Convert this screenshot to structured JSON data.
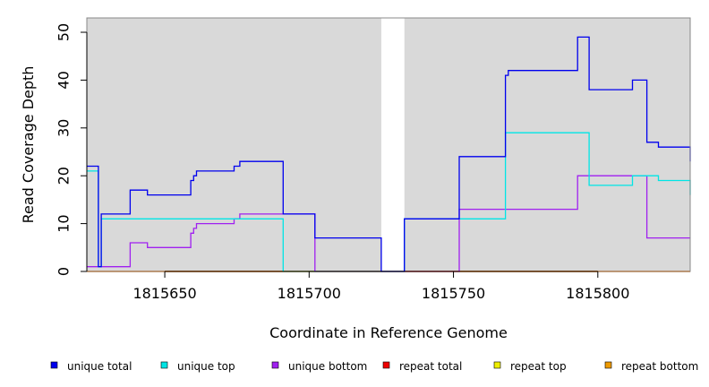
{
  "chart_data": {
    "type": "line",
    "xlabel": "Coordinate in Reference Genome",
    "ylabel": "Read Coverage Depth",
    "xlim": [
      1815623,
      1815832
    ],
    "ylim": [
      0,
      53
    ],
    "x_ticks": [
      1815650,
      1815700,
      1815750,
      1815800
    ],
    "y_ticks": [
      0,
      10,
      20,
      30,
      40,
      50
    ],
    "grid": false,
    "plot_background": "#d9d9d9",
    "gap_region": [
      1815725,
      1815733
    ],
    "legend_position": "bottom",
    "series": [
      {
        "name": "unique total",
        "color": "#0000ee",
        "style": "step",
        "points": [
          [
            1815623,
            22
          ],
          [
            1815627,
            1
          ],
          [
            1815628,
            12
          ],
          [
            1815638,
            17
          ],
          [
            1815644,
            16
          ],
          [
            1815659,
            19
          ],
          [
            1815660,
            20
          ],
          [
            1815661,
            21
          ],
          [
            1815674,
            22
          ],
          [
            1815676,
            23
          ],
          [
            1815691,
            12
          ],
          [
            1815702,
            7
          ],
          [
            1815725,
            0
          ],
          [
            1815733,
            11
          ],
          [
            1815752,
            24
          ],
          [
            1815768,
            41
          ],
          [
            1815769,
            42
          ],
          [
            1815793,
            49
          ],
          [
            1815797,
            38
          ],
          [
            1815812,
            40
          ],
          [
            1815817,
            27
          ],
          [
            1815821,
            26
          ],
          [
            1815832,
            23
          ]
        ]
      },
      {
        "name": "unique top",
        "color": "#00e5e5",
        "style": "step",
        "points": [
          [
            1815623,
            21
          ],
          [
            1815627,
            1
          ],
          [
            1815628,
            11
          ],
          [
            1815691,
            0
          ],
          [
            1815725,
            0
          ],
          [
            1815733,
            11
          ],
          [
            1815768,
            29
          ],
          [
            1815797,
            18
          ],
          [
            1815812,
            20
          ],
          [
            1815821,
            19
          ],
          [
            1815832,
            16
          ]
        ]
      },
      {
        "name": "unique bottom",
        "color": "#a020f0",
        "style": "step",
        "points": [
          [
            1815623,
            1
          ],
          [
            1815638,
            6
          ],
          [
            1815644,
            5
          ],
          [
            1815659,
            8
          ],
          [
            1815660,
            9
          ],
          [
            1815661,
            10
          ],
          [
            1815674,
            11
          ],
          [
            1815676,
            12
          ],
          [
            1815691,
            12
          ],
          [
            1815702,
            12
          ],
          [
            1815702,
            0
          ],
          [
            1815725,
            0
          ],
          [
            1815752,
            13
          ],
          [
            1815793,
            20
          ],
          [
            1815817,
            7
          ],
          [
            1815832,
            7
          ]
        ]
      },
      {
        "name": "repeat total",
        "color": "#ee0000",
        "style": "step",
        "points": [
          [
            1815623,
            0
          ],
          [
            1815832,
            0
          ]
        ]
      },
      {
        "name": "repeat top",
        "color": "#eeee00",
        "style": "step",
        "points": [
          [
            1815623,
            0
          ],
          [
            1815832,
            0
          ]
        ]
      },
      {
        "name": "repeat bottom",
        "color": "#ee9a00",
        "style": "step",
        "points": [
          [
            1815623,
            0
          ],
          [
            1815832,
            0
          ]
        ]
      }
    ]
  }
}
